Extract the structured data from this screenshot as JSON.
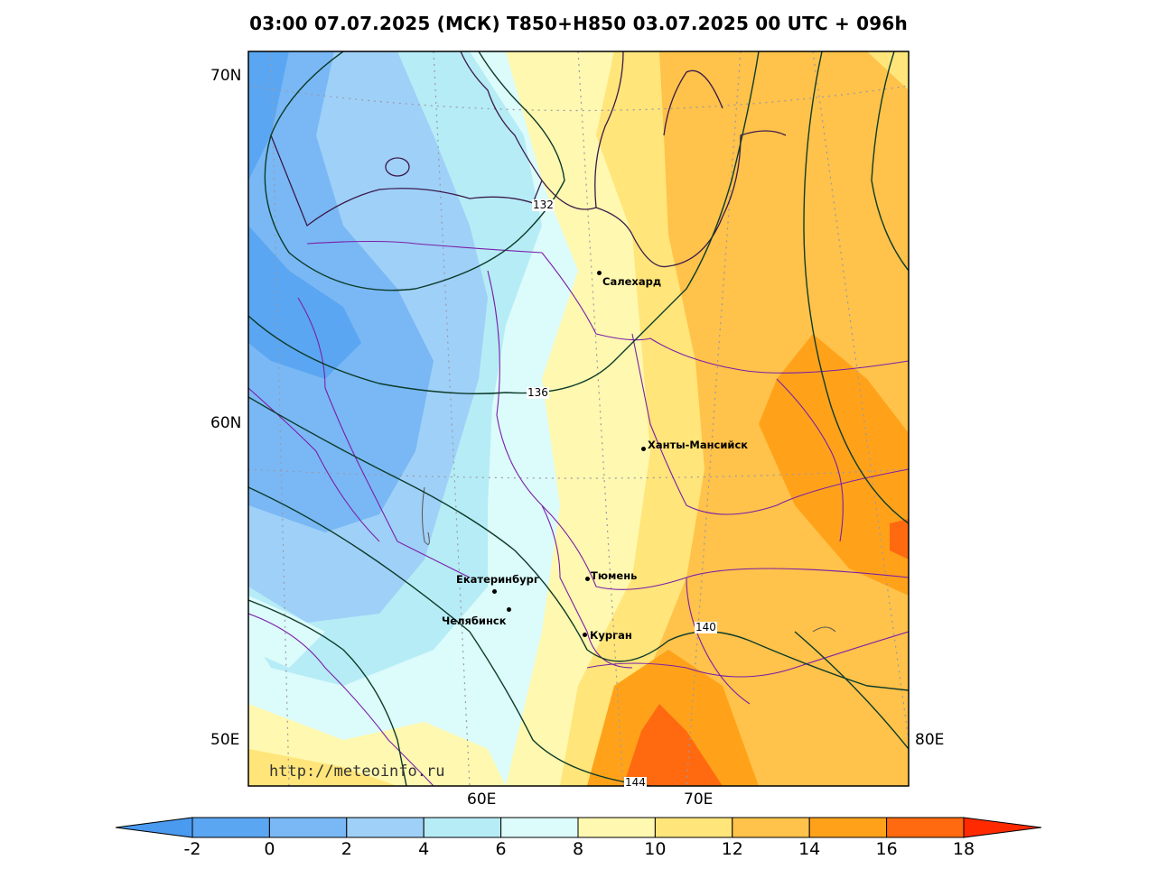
{
  "title": "03:00 07.07.2025 (МСК) T850+H850 03.07.2025 00 UTC + 096h",
  "lat_labels": [
    "70N",
    "60N",
    "50E"
  ],
  "lon_labels": [
    "60E",
    "70E",
    "80E"
  ],
  "watermark": "http://meteoinfo.ru",
  "cities": [
    {
      "name": "Салехард"
    },
    {
      "name": "Ханты-Мансийск"
    },
    {
      "name": "Тюмень"
    },
    {
      "name": "Екатеринбург"
    },
    {
      "name": "Челябинск"
    },
    {
      "name": "Курган"
    }
  ],
  "contour_labels": [
    "132",
    "136",
    "140",
    "144"
  ],
  "colorbar": {
    "ticks": [
      "-2",
      "0",
      "2",
      "4",
      "6",
      "8",
      "10",
      "12",
      "14",
      "16",
      "18"
    ],
    "colors": [
      "#4a9af0",
      "#5aa6f2",
      "#79b8f5",
      "#9fd0f8",
      "#b6ecf6",
      "#dcfbfb",
      "#fff8b0",
      "#ffe57a",
      "#ffc24a",
      "#ffa21a",
      "#ff6a10",
      "#ff2a00"
    ]
  }
}
